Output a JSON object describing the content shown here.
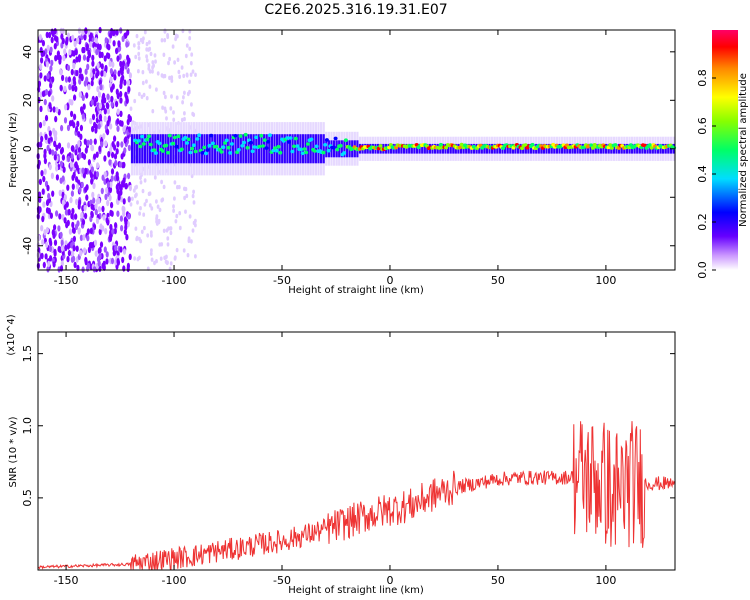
{
  "title": "C2E6.2025.316.19.31.E07",
  "chart_data": [
    {
      "type": "heatmap",
      "name": "spectrogram",
      "xlabel": "Height of straight line (km)",
      "ylabel": "Frequency (Hz)",
      "xlim": [
        -163,
        132
      ],
      "ylim": [
        -50,
        49
      ],
      "xticks": [
        -150,
        -100,
        -50,
        0,
        50,
        100
      ],
      "yticks": [
        -40,
        -20,
        0,
        20,
        40
      ],
      "colorbar": {
        "label": "Normalized spectral amplitude",
        "range": [
          0,
          1
        ],
        "ticks": [
          0.0,
          0.2,
          0.4,
          0.6,
          0.8
        ]
      }
    },
    {
      "type": "line",
      "name": "snr",
      "xlabel": "Height of straight line (km)",
      "ylabel": "SNR (10 * v/v)",
      "ymultiplier": "(x10^4)",
      "xlim": [
        -163,
        132
      ],
      "ylim": [
        0,
        1.65
      ],
      "xticks": [
        -150,
        -100,
        -50,
        0,
        50,
        100
      ],
      "yticks": [
        0.5,
        1.0,
        1.5
      ],
      "ytick_labels": [
        "0.5",
        "1.0",
        "1.5"
      ],
      "color": "#ee3333",
      "x": [
        -163,
        -140,
        -120,
        -110,
        -100,
        -90,
        -80,
        -70,
        -60,
        -50,
        -40,
        -30,
        -20,
        -10,
        0,
        10,
        20,
        30,
        40,
        50,
        60,
        70,
        80,
        85,
        90,
        95,
        100,
        105,
        110,
        115,
        120,
        132
      ],
      "y": [
        0.02,
        0.03,
        0.04,
        0.06,
        0.08,
        0.1,
        0.13,
        0.15,
        0.18,
        0.2,
        0.24,
        0.28,
        0.33,
        0.38,
        0.42,
        0.45,
        0.52,
        0.57,
        0.6,
        0.63,
        0.64,
        0.64,
        0.64,
        0.65,
        0.65,
        0.63,
        0.6,
        0.55,
        0.6,
        0.6,
        0.6,
        0.6
      ]
    }
  ]
}
